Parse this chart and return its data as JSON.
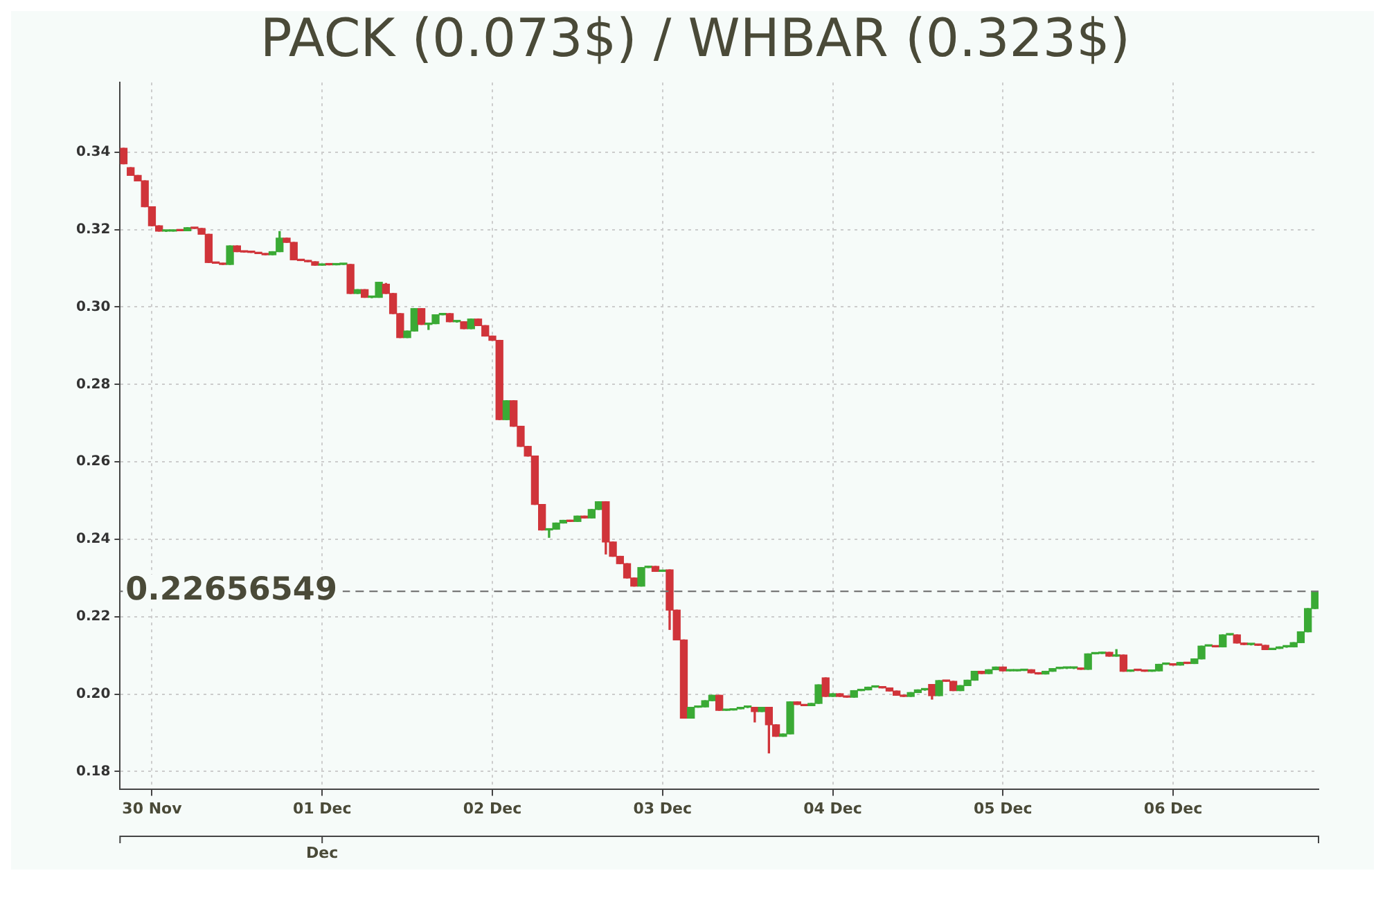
{
  "chart_data": {
    "type": "candlestick",
    "title": "PACK (0.073$) / WHBAR (0.323$)",
    "x": [
      "--11-29T20:00",
      "--11-29T21:00",
      "--11-29T22:00",
      "--11-29T23:00",
      "--11-30T00:00",
      "--11-30T01:00",
      "--11-30T02:00",
      "--11-30T03:00",
      "--11-30T04:00",
      "--11-30T05:00",
      "--11-30T06:00",
      "--11-30T07:00",
      "--11-30T08:00",
      "--11-30T09:00",
      "--11-30T10:00",
      "--11-30T11:00",
      "--11-30T12:00",
      "--11-30T13:00",
      "--11-30T14:00",
      "--11-30T15:00",
      "--11-30T16:00",
      "--11-30T17:00",
      "--11-30T18:00",
      "--11-30T19:00",
      "--11-30T20:00",
      "--11-30T21:00",
      "--11-30T22:00",
      "--11-30T23:00",
      "--12-01T00:00",
      "--12-01T01:00",
      "--12-01T02:00",
      "--12-01T03:00",
      "--12-01T04:00",
      "--12-01T05:00",
      "--12-01T06:00",
      "--12-01T07:00",
      "--12-01T08:00",
      "--12-01T09:00",
      "--12-01T10:00",
      "--12-01T11:00",
      "--12-01T12:00",
      "--12-01T13:00",
      "--12-01T14:00",
      "--12-01T15:00",
      "--12-01T16:00",
      "--12-01T17:00",
      "--12-01T18:00",
      "--12-01T19:00",
      "--12-01T20:00",
      "--12-01T21:00",
      "--12-01T22:00",
      "--12-01T23:00",
      "--12-02T00:00",
      "--12-02T01:00",
      "--12-02T02:00",
      "--12-02T03:00",
      "--12-02T04:00",
      "--12-02T05:00",
      "--12-02T06:00",
      "--12-02T07:00",
      "--12-02T08:00",
      "--12-02T09:00",
      "--12-02T10:00",
      "--12-02T11:00",
      "--12-02T12:00",
      "--12-02T13:00",
      "--12-02T14:00",
      "--12-02T15:00",
      "--12-02T16:00",
      "--12-02T17:00",
      "--12-02T18:00",
      "--12-02T19:00",
      "--12-02T20:00",
      "--12-02T21:00",
      "--12-02T22:00",
      "--12-02T23:00",
      "--12-03T00:00",
      "--12-03T01:00",
      "--12-03T02:00",
      "--12-03T03:00",
      "--12-03T04:00",
      "--12-03T05:00",
      "--12-03T06:00",
      "--12-03T07:00",
      "--12-03T08:00",
      "--12-03T09:00",
      "--12-03T10:00",
      "--12-03T11:00",
      "--12-03T12:00",
      "--12-03T13:00",
      "--12-03T14:00",
      "--12-03T15:00",
      "--12-03T16:00",
      "--12-03T17:00",
      "--12-03T18:00",
      "--12-03T19:00",
      "--12-03T20:00",
      "--12-03T21:00",
      "--12-03T22:00",
      "--12-03T23:00",
      "--12-04T00:00",
      "--12-04T01:00",
      "--12-04T02:00",
      "--12-04T03:00",
      "--12-04T04:00",
      "--12-04T05:00",
      "--12-04T06:00",
      "--12-04T07:00",
      "--12-04T08:00",
      "--12-04T09:00",
      "--12-04T10:00",
      "--12-04T11:00",
      "--12-04T12:00",
      "--12-04T13:00",
      "--12-04T14:00",
      "--12-04T15:00",
      "--12-04T16:00",
      "--12-04T17:00",
      "--12-04T18:00",
      "--12-04T19:00",
      "--12-04T20:00",
      "--12-04T21:00",
      "--12-04T22:00",
      "--12-04T23:00",
      "--12-05T00:00",
      "--12-05T01:00",
      "--12-05T02:00",
      "--12-05T03:00",
      "--12-05T04:00",
      "--12-05T05:00",
      "--12-05T06:00",
      "--12-05T07:00",
      "--12-05T08:00",
      "--12-05T09:00",
      "--12-05T10:00",
      "--12-05T11:00",
      "--12-05T12:00",
      "--12-05T13:00",
      "--12-05T14:00",
      "--12-05T15:00",
      "--12-05T16:00",
      "--12-05T17:00",
      "--12-05T18:00",
      "--12-05T19:00",
      "--12-05T20:00",
      "--12-05T21:00",
      "--12-05T22:00",
      "--12-05T23:00",
      "--12-06T00:00",
      "--12-06T01:00",
      "--12-06T02:00",
      "--12-06T03:00",
      "--12-06T04:00",
      "--12-06T05:00",
      "--12-06T06:00",
      "--12-06T07:00",
      "--12-06T08:00",
      "--12-06T09:00",
      "--12-06T10:00",
      "--12-06T11:00",
      "--12-06T12:00",
      "--12-06T13:00",
      "--12-06T14:00",
      "--12-06T15:00",
      "--12-06T16:00",
      "--12-06T17:00",
      "--12-06T18:00",
      "--12-06T19:00",
      "--12-06T20:00"
    ],
    "ohlc": [
      [
        0.341,
        0.341,
        0.337,
        0.337
      ],
      [
        0.336,
        0.336,
        0.334,
        0.334
      ],
      [
        0.334,
        0.334,
        0.3326,
        0.3326
      ],
      [
        0.3326,
        0.3326,
        0.3259,
        0.3259
      ],
      [
        0.3259,
        0.3259,
        0.321,
        0.321
      ],
      [
        0.321,
        0.321,
        0.3196,
        0.3196
      ],
      [
        0.3196,
        0.3197,
        0.3195,
        0.3196
      ],
      [
        0.3196,
        0.3199,
        0.3196,
        0.3199
      ],
      [
        0.3199,
        0.3199,
        0.3197,
        0.3197
      ],
      [
        0.3197,
        0.3205,
        0.3197,
        0.3205
      ],
      [
        0.3205,
        0.3205,
        0.3203,
        0.3203
      ],
      [
        0.3203,
        0.3203,
        0.3188,
        0.3188
      ],
      [
        0.3188,
        0.3188,
        0.3115,
        0.3115
      ],
      [
        0.3115,
        0.3115,
        0.3113,
        0.3113
      ],
      [
        0.3113,
        0.3113,
        0.311,
        0.311
      ],
      [
        0.311,
        0.3158,
        0.311,
        0.3158
      ],
      [
        0.3158,
        0.3158,
        0.3143,
        0.3143
      ],
      [
        0.3143,
        0.3143,
        0.3142,
        0.3142
      ],
      [
        0.3142,
        0.3142,
        0.3141,
        0.3141
      ],
      [
        0.3141,
        0.3141,
        0.3138,
        0.3138
      ],
      [
        0.3138,
        0.3138,
        0.3135,
        0.3135
      ],
      [
        0.3135,
        0.3143,
        0.3135,
        0.3143
      ],
      [
        0.3143,
        0.3195,
        0.3143,
        0.3178
      ],
      [
        0.3178,
        0.3178,
        0.3167,
        0.3167
      ],
      [
        0.3167,
        0.3167,
        0.3122,
        0.3122
      ],
      [
        0.3122,
        0.3122,
        0.312,
        0.312
      ],
      [
        0.312,
        0.312,
        0.3117,
        0.3117
      ],
      [
        0.3117,
        0.3117,
        0.3108,
        0.3108
      ],
      [
        0.3108,
        0.311,
        0.3108,
        0.311
      ],
      [
        0.311,
        0.311,
        0.3109,
        0.3109
      ],
      [
        0.3109,
        0.311,
        0.3109,
        0.311
      ],
      [
        0.311,
        0.311,
        0.311,
        0.311
      ],
      [
        0.311,
        0.311,
        0.3035,
        0.3035
      ],
      [
        0.3035,
        0.3045,
        0.3035,
        0.3045
      ],
      [
        0.3045,
        0.3045,
        0.3025,
        0.3025
      ],
      [
        0.3025,
        0.3026,
        0.3024,
        0.3025
      ],
      [
        0.3025,
        0.3064,
        0.3025,
        0.3064
      ],
      [
        0.3059,
        0.3061,
        0.3035,
        0.3035
      ],
      [
        0.3035,
        0.3035,
        0.2983,
        0.2983
      ],
      [
        0.2983,
        0.2983,
        0.2921,
        0.2921
      ],
      [
        0.2921,
        0.2938,
        0.2921,
        0.2938
      ],
      [
        0.2938,
        0.2996,
        0.2938,
        0.2996
      ],
      [
        0.2996,
        0.2996,
        0.2955,
        0.2955
      ],
      [
        0.2955,
        0.2957,
        0.2942,
        0.2957
      ],
      [
        0.2957,
        0.298,
        0.2957,
        0.298
      ],
      [
        0.298,
        0.2983,
        0.298,
        0.2983
      ],
      [
        0.2983,
        0.2983,
        0.2962,
        0.2962
      ],
      [
        0.2962,
        0.2962,
        0.2961,
        0.2962
      ],
      [
        0.2962,
        0.2962,
        0.2944,
        0.2944
      ],
      [
        0.2944,
        0.2969,
        0.2944,
        0.2969
      ],
      [
        0.2969,
        0.2969,
        0.2952,
        0.2952
      ],
      [
        0.2952,
        0.2952,
        0.2925,
        0.2925
      ],
      [
        0.2925,
        0.2925,
        0.2914,
        0.2914
      ],
      [
        0.2914,
        0.2914,
        0.2709,
        0.2709
      ],
      [
        0.2709,
        0.2758,
        0.2709,
        0.2758
      ],
      [
        0.2758,
        0.2758,
        0.2692,
        0.2692
      ],
      [
        0.2692,
        0.2692,
        0.264,
        0.264
      ],
      [
        0.264,
        0.264,
        0.2615,
        0.2615
      ],
      [
        0.2615,
        0.2615,
        0.249,
        0.249
      ],
      [
        0.249,
        0.249,
        0.2424,
        0.2424
      ],
      [
        0.2424,
        0.2426,
        0.2405,
        0.2426
      ],
      [
        0.2426,
        0.2442,
        0.2426,
        0.2442
      ],
      [
        0.2442,
        0.2449,
        0.2442,
        0.2449
      ],
      [
        0.2449,
        0.2449,
        0.2446,
        0.2446
      ],
      [
        0.2446,
        0.246,
        0.2446,
        0.246
      ],
      [
        0.246,
        0.246,
        0.2455,
        0.2455
      ],
      [
        0.2455,
        0.2477,
        0.2455,
        0.2477
      ],
      [
        0.2477,
        0.2497,
        0.2477,
        0.2497
      ],
      [
        0.2497,
        0.2497,
        0.2362,
        0.2393
      ],
      [
        0.2393,
        0.2393,
        0.2356,
        0.2356
      ],
      [
        0.2356,
        0.2356,
        0.2337,
        0.2337
      ],
      [
        0.2337,
        0.2337,
        0.23,
        0.23
      ],
      [
        0.23,
        0.23,
        0.2279,
        0.2279
      ],
      [
        0.2279,
        0.2327,
        0.2279,
        0.2327
      ],
      [
        0.2327,
        0.233,
        0.2327,
        0.233
      ],
      [
        0.233,
        0.233,
        0.2317,
        0.2317
      ],
      [
        0.2317,
        0.232,
        0.2317,
        0.232
      ],
      [
        0.2321,
        0.2321,
        0.2167,
        0.2217
      ],
      [
        0.2217,
        0.2217,
        0.214,
        0.214
      ],
      [
        0.214,
        0.214,
        0.1938,
        0.1938
      ],
      [
        0.1938,
        0.1966,
        0.1938,
        0.1966
      ],
      [
        0.1966,
        0.1967,
        0.1966,
        0.1967
      ],
      [
        0.1967,
        0.1983,
        0.1967,
        0.1983
      ],
      [
        0.1983,
        0.1997,
        0.1983,
        0.1997
      ],
      [
        0.1997,
        0.1997,
        0.1958,
        0.1958
      ],
      [
        0.1958,
        0.1959,
        0.1958,
        0.1959
      ],
      [
        0.1959,
        0.1962,
        0.1959,
        0.1962
      ],
      [
        0.1962,
        0.1966,
        0.1962,
        0.1966
      ],
      [
        0.1966,
        0.1966,
        0.1965,
        0.1966
      ],
      [
        0.1966,
        0.1966,
        0.1928,
        0.1955
      ],
      [
        0.1955,
        0.1966,
        0.1955,
        0.1966
      ],
      [
        0.1966,
        0.1966,
        0.1848,
        0.1921
      ],
      [
        0.1921,
        0.1921,
        0.1891,
        0.1891
      ],
      [
        0.1891,
        0.1897,
        0.1891,
        0.1897
      ],
      [
        0.1897,
        0.198,
        0.1897,
        0.198
      ],
      [
        0.198,
        0.198,
        0.1973,
        0.1973
      ],
      [
        0.1973,
        0.1973,
        0.197,
        0.197
      ],
      [
        0.197,
        0.1976,
        0.197,
        0.1976
      ],
      [
        0.1976,
        0.2024,
        0.1976,
        0.2024
      ],
      [
        0.2042,
        0.2042,
        0.1994,
        0.1994
      ],
      [
        0.1994,
        0.2001,
        0.1994,
        0.2001
      ],
      [
        0.2001,
        0.2001,
        0.1994,
        0.1994
      ],
      [
        0.1994,
        0.1994,
        0.1992,
        0.1992
      ],
      [
        0.1992,
        0.2009,
        0.1992,
        0.2009
      ],
      [
        0.2009,
        0.2011,
        0.2009,
        0.2011
      ],
      [
        0.2011,
        0.2018,
        0.2011,
        0.2018
      ],
      [
        0.2018,
        0.2018,
        0.2018,
        0.2018
      ],
      [
        0.2018,
        0.2018,
        0.2016,
        0.2016
      ],
      [
        0.2016,
        0.2016,
        0.2008,
        0.2008
      ],
      [
        0.2008,
        0.2008,
        0.1997,
        0.1997
      ],
      [
        0.1997,
        0.1997,
        0.1994,
        0.1994
      ],
      [
        0.1994,
        0.2004,
        0.1994,
        0.2004
      ],
      [
        0.2004,
        0.2011,
        0.2004,
        0.2011
      ],
      [
        0.2011,
        0.2011,
        0.201,
        0.2011
      ],
      [
        0.2025,
        0.2025,
        0.1987,
        0.1996
      ],
      [
        0.1996,
        0.2035,
        0.1996,
        0.2035
      ],
      [
        0.2035,
        0.2035,
        0.2033,
        0.2033
      ],
      [
        0.2033,
        0.2033,
        0.2009,
        0.2009
      ],
      [
        0.2009,
        0.2022,
        0.2009,
        0.2022
      ],
      [
        0.2022,
        0.2036,
        0.2022,
        0.2036
      ],
      [
        0.2036,
        0.2059,
        0.2036,
        0.2059
      ],
      [
        0.2059,
        0.2059,
        0.2053,
        0.2053
      ],
      [
        0.2053,
        0.2063,
        0.2053,
        0.2063
      ],
      [
        0.2063,
        0.207,
        0.2063,
        0.207
      ],
      [
        0.207,
        0.207,
        0.206,
        0.206
      ],
      [
        0.206,
        0.2061,
        0.206,
        0.206
      ],
      [
        0.206,
        0.2061,
        0.206,
        0.2061
      ],
      [
        0.2061,
        0.2063,
        0.2061,
        0.2063
      ],
      [
        0.2063,
        0.2063,
        0.2055,
        0.2055
      ],
      [
        0.2055,
        0.2055,
        0.2052,
        0.2052
      ],
      [
        0.2052,
        0.2059,
        0.2052,
        0.2059
      ],
      [
        0.2059,
        0.2066,
        0.2059,
        0.2066
      ],
      [
        0.2066,
        0.2067,
        0.2066,
        0.2067
      ],
      [
        0.2067,
        0.2067,
        0.2066,
        0.2067
      ],
      [
        0.2067,
        0.2067,
        0.2066,
        0.2067
      ],
      [
        0.2067,
        0.2067,
        0.2064,
        0.2064
      ],
      [
        0.2064,
        0.2104,
        0.2064,
        0.2104
      ],
      [
        0.2104,
        0.2105,
        0.2104,
        0.2105
      ],
      [
        0.2105,
        0.2108,
        0.2105,
        0.2108
      ],
      [
        0.2108,
        0.2108,
        0.2098,
        0.2098
      ],
      [
        0.2098,
        0.2115,
        0.2098,
        0.2101
      ],
      [
        0.2101,
        0.2101,
        0.2059,
        0.2059
      ],
      [
        0.2059,
        0.2062,
        0.2059,
        0.2062
      ],
      [
        0.2062,
        0.2062,
        0.2061,
        0.2061
      ],
      [
        0.2061,
        0.2061,
        0.2059,
        0.2059
      ],
      [
        0.2059,
        0.206,
        0.2059,
        0.206
      ],
      [
        0.206,
        0.2077,
        0.206,
        0.2077
      ],
      [
        0.2077,
        0.2077,
        0.2077,
        0.2077
      ],
      [
        0.2077,
        0.2077,
        0.2075,
        0.2075
      ],
      [
        0.2075,
        0.2082,
        0.2075,
        0.2082
      ],
      [
        0.2082,
        0.2082,
        0.2079,
        0.2079
      ],
      [
        0.2079,
        0.2091,
        0.2079,
        0.2091
      ],
      [
        0.2091,
        0.2124,
        0.2091,
        0.2124
      ],
      [
        0.2124,
        0.2125,
        0.2124,
        0.2125
      ],
      [
        0.2125,
        0.2125,
        0.2122,
        0.2122
      ],
      [
        0.2122,
        0.2153,
        0.2122,
        0.2153
      ],
      [
        0.2153,
        0.2154,
        0.2153,
        0.2153
      ],
      [
        0.2153,
        0.2153,
        0.2132,
        0.2132
      ],
      [
        0.2132,
        0.2132,
        0.2128,
        0.2128
      ],
      [
        0.2128,
        0.2128,
        0.2127,
        0.2128
      ],
      [
        0.2128,
        0.2128,
        0.2126,
        0.2126
      ],
      [
        0.2126,
        0.2126,
        0.2115,
        0.2115
      ],
      [
        0.2115,
        0.2118,
        0.2115,
        0.2118
      ],
      [
        0.2118,
        0.2122,
        0.2118,
        0.2122
      ],
      [
        0.2122,
        0.2122,
        0.2121,
        0.2122
      ],
      [
        0.2122,
        0.2133,
        0.2122,
        0.2133
      ],
      [
        0.2133,
        0.2161,
        0.2133,
        0.2161
      ],
      [
        0.2161,
        0.2221,
        0.2161,
        0.2221
      ],
      [
        0.2221,
        0.2266,
        0.2221,
        0.2266
      ]
    ],
    "xlim": [
      "--11-29T19:30",
      "--12-06T20:30"
    ],
    "xticks": [
      {
        "value": "--11-30",
        "label": "30 Nov"
      },
      {
        "value": "--12-01",
        "label": "01 Dec"
      },
      {
        "value": "--12-02",
        "label": "02 Dec"
      },
      {
        "value": "--12-03",
        "label": "03 Dec"
      },
      {
        "value": "--12-04",
        "label": "04 Dec"
      },
      {
        "value": "--12-05",
        "label": "05 Dec"
      },
      {
        "value": "--12-06",
        "label": "06 Dec"
      }
    ],
    "annotations": [
      "Dec"
    ],
    "ylim": [
      0.1755,
      0.358
    ],
    "yticks": [
      {
        "value": 0.18,
        "label": "0.18"
      },
      {
        "value": 0.2,
        "label": "0.20"
      },
      {
        "value": 0.22,
        "label": "0.22"
      },
      {
        "value": 0.24,
        "label": "0.24"
      },
      {
        "value": 0.26,
        "label": "0.26"
      },
      {
        "value": 0.28,
        "label": "0.28"
      },
      {
        "value": 0.3,
        "label": "0.30"
      },
      {
        "value": 0.32,
        "label": "0.32"
      },
      {
        "value": 0.34,
        "label": "0.34"
      }
    ],
    "ref_lines": [
      {
        "axis": "y",
        "value": 0.22656549,
        "label": "0.22656549",
        "color": "#777777",
        "line_style": "dashed"
      }
    ],
    "grid": true
  }
}
